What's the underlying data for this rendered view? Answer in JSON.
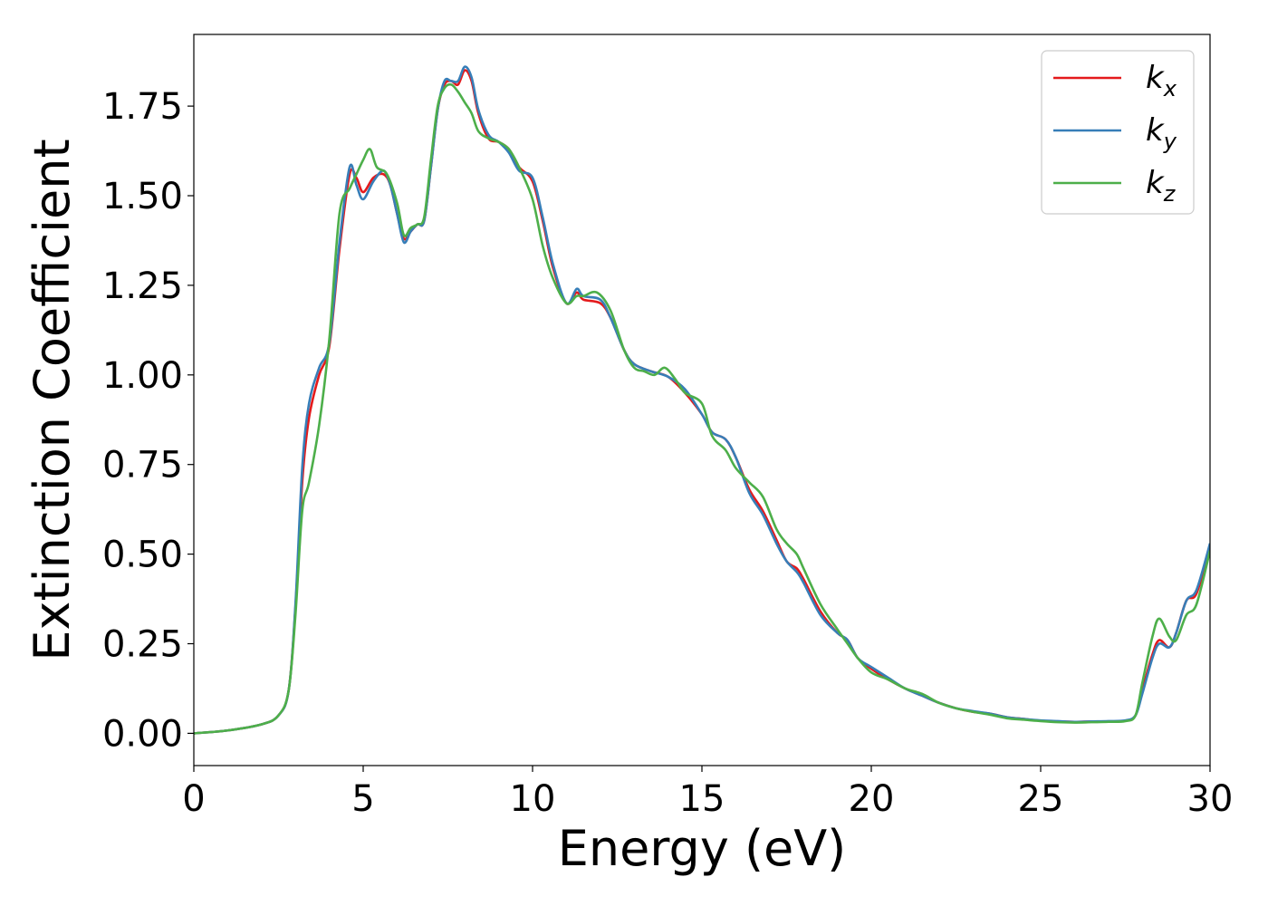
{
  "chart_data": {
    "type": "line",
    "title": "",
    "xlabel": "Energy (eV)",
    "ylabel": "Extinction Coefficient",
    "xlim": [
      0,
      30
    ],
    "ylim": [
      -0.09,
      1.95
    ],
    "xticks": [
      0,
      5,
      10,
      15,
      20,
      25,
      30
    ],
    "xtick_labels": [
      "0",
      "5",
      "10",
      "15",
      "20",
      "25",
      "30"
    ],
    "yticks": [
      0,
      0.25,
      0.5,
      0.75,
      1.0,
      1.25,
      1.5,
      1.75
    ],
    "ytick_labels": [
      "0.00",
      "0.25",
      "0.50",
      "0.75",
      "1.00",
      "1.25",
      "1.50",
      "1.75"
    ],
    "grid": false,
    "legend_position": "top-right",
    "series": [
      {
        "name": "k",
        "subscript": "x",
        "color": "#e41a1c",
        "points": [
          [
            0,
            0.0
          ],
          [
            1,
            0.008
          ],
          [
            2,
            0.025
          ],
          [
            2.5,
            0.05
          ],
          [
            2.8,
            0.12
          ],
          [
            3.0,
            0.35
          ],
          [
            3.2,
            0.7
          ],
          [
            3.4,
            0.88
          ],
          [
            3.7,
            1.0
          ],
          [
            4.0,
            1.08
          ],
          [
            4.3,
            1.35
          ],
          [
            4.6,
            1.56
          ],
          [
            4.8,
            1.55
          ],
          [
            5.0,
            1.51
          ],
          [
            5.3,
            1.55
          ],
          [
            5.6,
            1.56
          ],
          [
            5.8,
            1.53
          ],
          [
            6.0,
            1.45
          ],
          [
            6.2,
            1.38
          ],
          [
            6.4,
            1.4
          ],
          [
            6.6,
            1.42
          ],
          [
            6.8,
            1.43
          ],
          [
            7.0,
            1.58
          ],
          [
            7.2,
            1.74
          ],
          [
            7.4,
            1.81
          ],
          [
            7.6,
            1.82
          ],
          [
            7.8,
            1.81
          ],
          [
            8.0,
            1.85
          ],
          [
            8.2,
            1.82
          ],
          [
            8.4,
            1.73
          ],
          [
            8.7,
            1.66
          ],
          [
            9.0,
            1.65
          ],
          [
            9.3,
            1.63
          ],
          [
            9.6,
            1.58
          ],
          [
            10.0,
            1.54
          ],
          [
            10.3,
            1.43
          ],
          [
            10.6,
            1.3
          ],
          [
            11.0,
            1.2
          ],
          [
            11.3,
            1.23
          ],
          [
            11.5,
            1.21
          ],
          [
            12.0,
            1.2
          ],
          [
            12.3,
            1.16
          ],
          [
            12.7,
            1.07
          ],
          [
            13.0,
            1.03
          ],
          [
            13.5,
            1.01
          ],
          [
            14.0,
            0.995
          ],
          [
            14.5,
            0.95
          ],
          [
            15.0,
            0.89
          ],
          [
            15.3,
            0.84
          ],
          [
            15.7,
            0.82
          ],
          [
            16.0,
            0.77
          ],
          [
            16.4,
            0.68
          ],
          [
            16.8,
            0.62
          ],
          [
            17.2,
            0.54
          ],
          [
            17.5,
            0.48
          ],
          [
            17.8,
            0.46
          ],
          [
            18.0,
            0.43
          ],
          [
            18.5,
            0.34
          ],
          [
            19.0,
            0.28
          ],
          [
            19.3,
            0.26
          ],
          [
            19.6,
            0.21
          ],
          [
            20.0,
            0.18
          ],
          [
            20.5,
            0.15
          ],
          [
            21.0,
            0.125
          ],
          [
            21.5,
            0.105
          ],
          [
            22.0,
            0.085
          ],
          [
            22.5,
            0.07
          ],
          [
            23.0,
            0.06
          ],
          [
            23.5,
            0.055
          ],
          [
            24.0,
            0.045
          ],
          [
            24.5,
            0.04
          ],
          [
            25.0,
            0.035
          ],
          [
            25.5,
            0.033
          ],
          [
            26.0,
            0.032
          ],
          [
            26.5,
            0.033
          ],
          [
            27.0,
            0.033
          ],
          [
            27.5,
            0.035
          ],
          [
            27.8,
            0.05
          ],
          [
            28.0,
            0.12
          ],
          [
            28.3,
            0.22
          ],
          [
            28.5,
            0.26
          ],
          [
            28.8,
            0.24
          ],
          [
            29.0,
            0.28
          ],
          [
            29.3,
            0.37
          ],
          [
            29.6,
            0.39
          ],
          [
            30.0,
            0.52
          ]
        ]
      },
      {
        "name": "k",
        "subscript": "y",
        "color": "#377eb8",
        "points": [
          [
            0,
            0.0
          ],
          [
            1,
            0.008
          ],
          [
            2,
            0.025
          ],
          [
            2.5,
            0.05
          ],
          [
            2.8,
            0.12
          ],
          [
            3.0,
            0.36
          ],
          [
            3.2,
            0.74
          ],
          [
            3.4,
            0.92
          ],
          [
            3.7,
            1.02
          ],
          [
            4.0,
            1.09
          ],
          [
            4.3,
            1.37
          ],
          [
            4.6,
            1.58
          ],
          [
            4.8,
            1.53
          ],
          [
            5.0,
            1.49
          ],
          [
            5.3,
            1.54
          ],
          [
            5.6,
            1.57
          ],
          [
            5.8,
            1.53
          ],
          [
            6.0,
            1.45
          ],
          [
            6.2,
            1.37
          ],
          [
            6.4,
            1.4
          ],
          [
            6.6,
            1.42
          ],
          [
            6.8,
            1.43
          ],
          [
            7.0,
            1.58
          ],
          [
            7.2,
            1.74
          ],
          [
            7.4,
            1.82
          ],
          [
            7.6,
            1.82
          ],
          [
            7.8,
            1.82
          ],
          [
            8.0,
            1.86
          ],
          [
            8.2,
            1.83
          ],
          [
            8.4,
            1.74
          ],
          [
            8.7,
            1.67
          ],
          [
            9.0,
            1.65
          ],
          [
            9.3,
            1.62
          ],
          [
            9.6,
            1.57
          ],
          [
            10.0,
            1.55
          ],
          [
            10.3,
            1.44
          ],
          [
            10.6,
            1.31
          ],
          [
            11.0,
            1.2
          ],
          [
            11.3,
            1.24
          ],
          [
            11.5,
            1.22
          ],
          [
            12.0,
            1.21
          ],
          [
            12.3,
            1.16
          ],
          [
            12.7,
            1.07
          ],
          [
            13.0,
            1.03
          ],
          [
            13.5,
            1.01
          ],
          [
            14.0,
            0.995
          ],
          [
            14.5,
            0.96
          ],
          [
            15.0,
            0.89
          ],
          [
            15.3,
            0.84
          ],
          [
            15.7,
            0.82
          ],
          [
            16.0,
            0.77
          ],
          [
            16.4,
            0.67
          ],
          [
            16.8,
            0.61
          ],
          [
            17.2,
            0.53
          ],
          [
            17.5,
            0.48
          ],
          [
            17.8,
            0.45
          ],
          [
            18.0,
            0.42
          ],
          [
            18.5,
            0.33
          ],
          [
            19.0,
            0.28
          ],
          [
            19.3,
            0.26
          ],
          [
            19.6,
            0.21
          ],
          [
            20.0,
            0.185
          ],
          [
            20.5,
            0.155
          ],
          [
            21.0,
            0.125
          ],
          [
            21.5,
            0.105
          ],
          [
            22.0,
            0.085
          ],
          [
            22.5,
            0.07
          ],
          [
            23.0,
            0.062
          ],
          [
            23.5,
            0.055
          ],
          [
            24.0,
            0.045
          ],
          [
            24.5,
            0.04
          ],
          [
            25.0,
            0.036
          ],
          [
            25.5,
            0.034
          ],
          [
            26.0,
            0.032
          ],
          [
            26.5,
            0.033
          ],
          [
            27.0,
            0.034
          ],
          [
            27.5,
            0.036
          ],
          [
            27.8,
            0.05
          ],
          [
            28.0,
            0.11
          ],
          [
            28.3,
            0.21
          ],
          [
            28.5,
            0.25
          ],
          [
            28.8,
            0.24
          ],
          [
            29.0,
            0.28
          ],
          [
            29.3,
            0.37
          ],
          [
            29.6,
            0.4
          ],
          [
            30.0,
            0.53
          ]
        ]
      },
      {
        "name": "k",
        "subscript": "z",
        "color": "#4daf4a",
        "points": [
          [
            0,
            0.0
          ],
          [
            1,
            0.008
          ],
          [
            2,
            0.025
          ],
          [
            2.5,
            0.05
          ],
          [
            2.8,
            0.12
          ],
          [
            3.0,
            0.33
          ],
          [
            3.2,
            0.62
          ],
          [
            3.4,
            0.7
          ],
          [
            3.7,
            0.86
          ],
          [
            4.0,
            1.1
          ],
          [
            4.3,
            1.45
          ],
          [
            4.6,
            1.52
          ],
          [
            4.8,
            1.56
          ],
          [
            5.0,
            1.6
          ],
          [
            5.2,
            1.63
          ],
          [
            5.4,
            1.58
          ],
          [
            5.7,
            1.56
          ],
          [
            6.0,
            1.48
          ],
          [
            6.2,
            1.39
          ],
          [
            6.4,
            1.41
          ],
          [
            6.6,
            1.42
          ],
          [
            6.8,
            1.44
          ],
          [
            7.0,
            1.6
          ],
          [
            7.2,
            1.75
          ],
          [
            7.4,
            1.8
          ],
          [
            7.6,
            1.81
          ],
          [
            7.8,
            1.79
          ],
          [
            8.0,
            1.76
          ],
          [
            8.2,
            1.73
          ],
          [
            8.4,
            1.68
          ],
          [
            8.7,
            1.66
          ],
          [
            9.0,
            1.65
          ],
          [
            9.3,
            1.63
          ],
          [
            9.6,
            1.58
          ],
          [
            10.0,
            1.49
          ],
          [
            10.3,
            1.36
          ],
          [
            10.6,
            1.27
          ],
          [
            11.0,
            1.2
          ],
          [
            11.3,
            1.22
          ],
          [
            11.5,
            1.22
          ],
          [
            11.9,
            1.23
          ],
          [
            12.3,
            1.18
          ],
          [
            12.7,
            1.07
          ],
          [
            13.0,
            1.02
          ],
          [
            13.3,
            1.01
          ],
          [
            13.6,
            1.0
          ],
          [
            13.9,
            1.02
          ],
          [
            14.2,
            0.99
          ],
          [
            14.5,
            0.95
          ],
          [
            15.0,
            0.92
          ],
          [
            15.3,
            0.83
          ],
          [
            15.7,
            0.79
          ],
          [
            16.0,
            0.74
          ],
          [
            16.4,
            0.7
          ],
          [
            16.8,
            0.66
          ],
          [
            17.2,
            0.57
          ],
          [
            17.5,
            0.53
          ],
          [
            17.8,
            0.5
          ],
          [
            18.0,
            0.46
          ],
          [
            18.5,
            0.36
          ],
          [
            19.0,
            0.29
          ],
          [
            19.3,
            0.25
          ],
          [
            19.6,
            0.21
          ],
          [
            20.0,
            0.17
          ],
          [
            20.5,
            0.15
          ],
          [
            21.0,
            0.125
          ],
          [
            21.5,
            0.11
          ],
          [
            22.0,
            0.085
          ],
          [
            22.5,
            0.07
          ],
          [
            23.0,
            0.06
          ],
          [
            23.5,
            0.052
          ],
          [
            24.0,
            0.042
          ],
          [
            24.5,
            0.038
          ],
          [
            25.0,
            0.034
          ],
          [
            25.5,
            0.031
          ],
          [
            26.0,
            0.03
          ],
          [
            26.5,
            0.031
          ],
          [
            27.0,
            0.032
          ],
          [
            27.5,
            0.034
          ],
          [
            27.8,
            0.05
          ],
          [
            28.0,
            0.14
          ],
          [
            28.3,
            0.27
          ],
          [
            28.5,
            0.32
          ],
          [
            28.8,
            0.27
          ],
          [
            29.0,
            0.26
          ],
          [
            29.3,
            0.33
          ],
          [
            29.6,
            0.36
          ],
          [
            30.0,
            0.51
          ]
        ]
      }
    ]
  }
}
